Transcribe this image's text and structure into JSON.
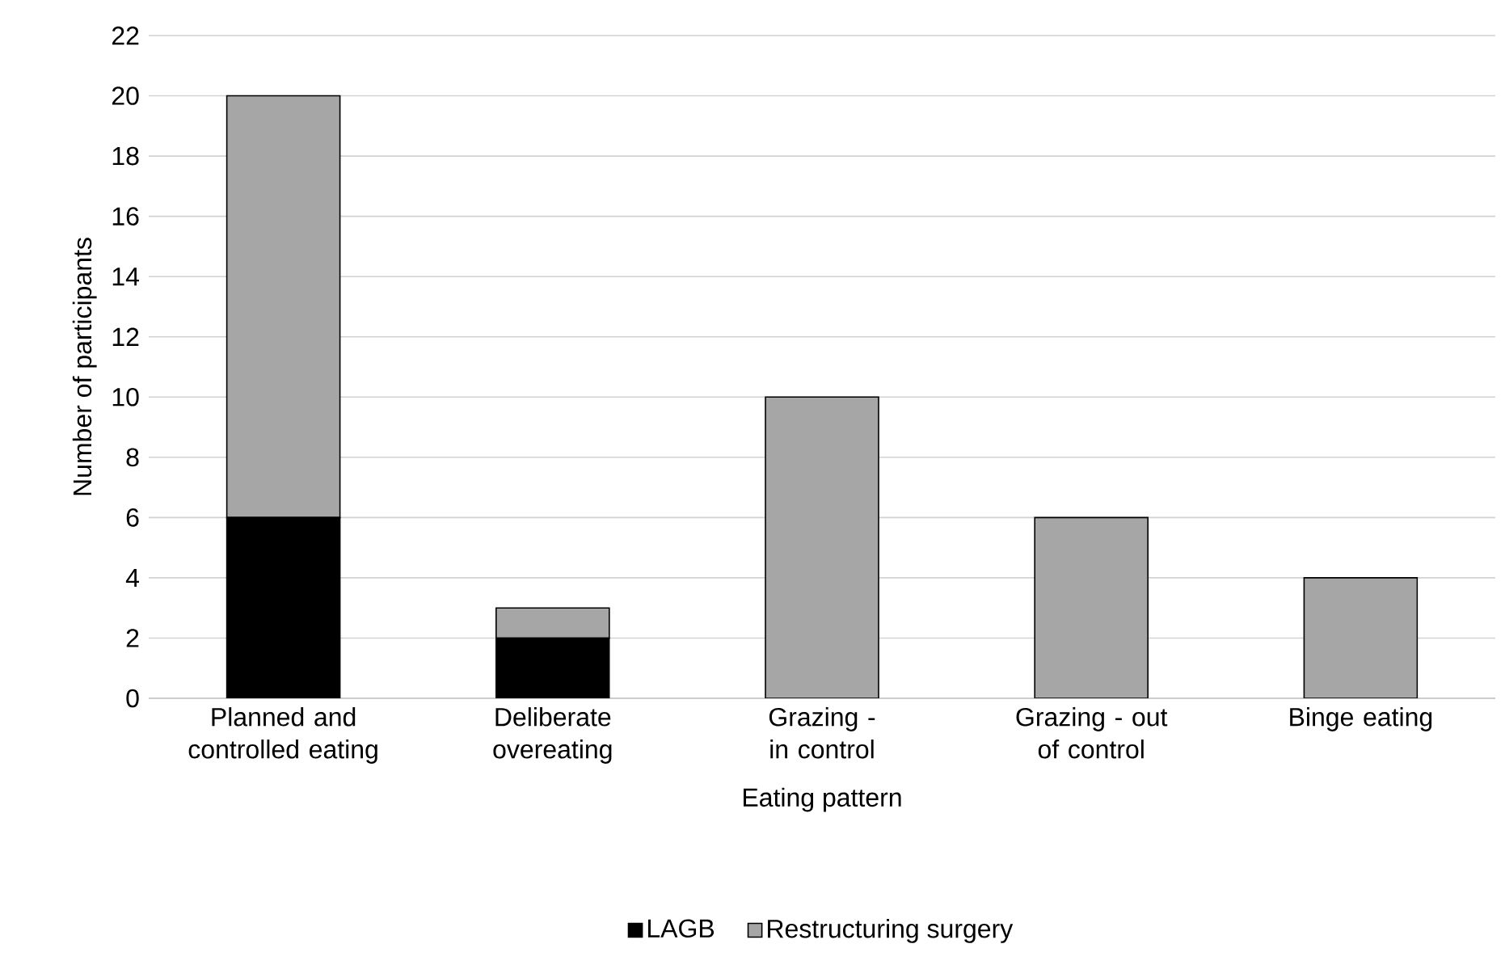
{
  "chart_data": {
    "type": "bar",
    "stacked": true,
    "xlabel": "Eating pattern",
    "ylabel": "Number of participants",
    "categories": [
      "Planned and controlled eating",
      "Deliberate overeating",
      "Grazing - in control",
      "Grazing - out of control",
      "Binge eating"
    ],
    "series": [
      {
        "name": "LAGB",
        "color": "#000000",
        "values": [
          6,
          2,
          0,
          0,
          0
        ]
      },
      {
        "name": "Restructuring surgery",
        "color": "#a6a6a6",
        "values": [
          14,
          1,
          10,
          6,
          4
        ]
      }
    ],
    "ylim": [
      0,
      22
    ],
    "yticks": [
      0,
      2,
      4,
      6,
      8,
      10,
      12,
      14,
      16,
      18,
      20,
      22
    ],
    "grid": "y",
    "legend": "bottom"
  }
}
